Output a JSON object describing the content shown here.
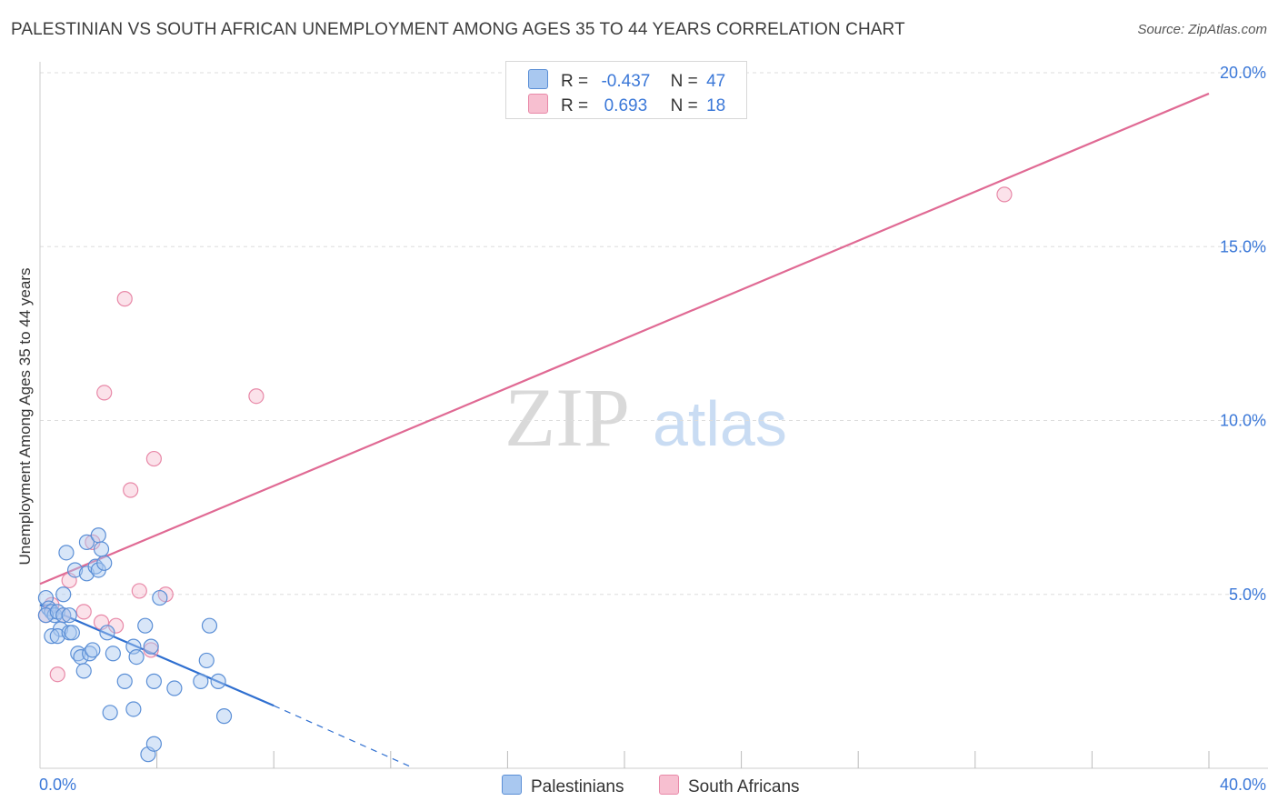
{
  "title": "PALESTINIAN VS SOUTH AFRICAN UNEMPLOYMENT AMONG AGES 35 TO 44 YEARS CORRELATION CHART",
  "source": "Source: ZipAtlas.com",
  "watermark": {
    "zip": "ZIP",
    "atlas": "atlas"
  },
  "legend": {
    "palestinians": {
      "r_label": "R =",
      "r_value": "-0.437",
      "n_label": "N =",
      "n_value": "47"
    },
    "south_africans": {
      "r_label": "R =",
      "r_value": "0.693",
      "n_label": "N =",
      "n_value": "18"
    }
  },
  "bottom_legend": {
    "palestinians": "Palestinians",
    "south_africans": "South Africans"
  },
  "colors": {
    "blue_fill": "#a9c8f0",
    "blue_stroke": "#5b8fd6",
    "blue_line": "#2f6fd0",
    "pink_fill": "#f7bfd0",
    "pink_stroke": "#e889a8",
    "pink_line": "#e06a94",
    "axis_text": "#3b78d8",
    "grid": "#dddddd"
  },
  "chart_data": {
    "type": "scatter",
    "title": "PALESTINIAN VS SOUTH AFRICAN UNEMPLOYMENT AMONG AGES 35 TO 44 YEARS CORRELATION CHART",
    "xlabel": "",
    "ylabel": "Unemployment Among Ages 35 to 44 years",
    "xlim": [
      0,
      40
    ],
    "ylim": [
      0,
      20
    ],
    "x_tick_labels": [
      "0.0%",
      "40.0%"
    ],
    "y_ticks": [
      5,
      10,
      15,
      20
    ],
    "y_tick_labels": [
      "5.0%",
      "10.0%",
      "15.0%",
      "20.0%"
    ],
    "x_minor_ticks": [
      4,
      8,
      12,
      16,
      20,
      24,
      28,
      32,
      36,
      40
    ],
    "series": [
      {
        "name": "Palestinians",
        "color": "blue",
        "points": [
          [
            0.2,
            4.9
          ],
          [
            0.3,
            4.6
          ],
          [
            0.4,
            4.5
          ],
          [
            0.5,
            4.4
          ],
          [
            0.2,
            4.4
          ],
          [
            0.6,
            4.5
          ],
          [
            0.8,
            4.4
          ],
          [
            0.7,
            4.0
          ],
          [
            0.4,
            3.8
          ],
          [
            0.6,
            3.8
          ],
          [
            0.8,
            5.0
          ],
          [
            0.9,
            6.2
          ],
          [
            1.0,
            4.4
          ],
          [
            1.0,
            3.9
          ],
          [
            1.1,
            3.9
          ],
          [
            1.2,
            5.7
          ],
          [
            1.3,
            3.3
          ],
          [
            1.4,
            3.2
          ],
          [
            1.5,
            2.8
          ],
          [
            1.6,
            6.5
          ],
          [
            1.6,
            5.6
          ],
          [
            1.7,
            3.3
          ],
          [
            1.8,
            3.4
          ],
          [
            1.9,
            5.8
          ],
          [
            2.0,
            5.7
          ],
          [
            2.0,
            6.7
          ],
          [
            2.1,
            6.3
          ],
          [
            2.2,
            5.9
          ],
          [
            2.3,
            3.9
          ],
          [
            2.4,
            1.6
          ],
          [
            2.5,
            3.3
          ],
          [
            2.9,
            2.5
          ],
          [
            3.2,
            3.5
          ],
          [
            3.2,
            1.7
          ],
          [
            3.3,
            3.2
          ],
          [
            3.6,
            4.1
          ],
          [
            3.8,
            3.5
          ],
          [
            3.7,
            0.4
          ],
          [
            3.9,
            2.5
          ],
          [
            3.9,
            0.7
          ],
          [
            4.1,
            4.9
          ],
          [
            4.6,
            2.3
          ],
          [
            5.5,
            2.5
          ],
          [
            5.7,
            3.1
          ],
          [
            5.8,
            4.1
          ],
          [
            6.1,
            2.5
          ],
          [
            6.3,
            1.5
          ]
        ]
      },
      {
        "name": "South Africans",
        "color": "pink",
        "points": [
          [
            0.2,
            4.4
          ],
          [
            0.4,
            4.7
          ],
          [
            0.6,
            2.7
          ],
          [
            0.8,
            4.4
          ],
          [
            1.0,
            5.4
          ],
          [
            1.5,
            4.5
          ],
          [
            1.8,
            6.5
          ],
          [
            2.1,
            4.2
          ],
          [
            2.2,
            10.8
          ],
          [
            2.6,
            4.1
          ],
          [
            2.9,
            13.5
          ],
          [
            3.1,
            8.0
          ],
          [
            3.4,
            5.1
          ],
          [
            3.8,
            3.4
          ],
          [
            3.9,
            8.9
          ],
          [
            4.3,
            5.0
          ],
          [
            7.4,
            10.7
          ],
          [
            33.0,
            16.5
          ]
        ]
      }
    ],
    "trendlines": [
      {
        "series": "Palestinians",
        "solid": [
          [
            0,
            4.7
          ],
          [
            8.0,
            1.8
          ]
        ],
        "dashed": [
          [
            8.0,
            1.8
          ],
          [
            12.8,
            0.0
          ]
        ]
      },
      {
        "series": "South Africans",
        "solid": [
          [
            0,
            5.3
          ],
          [
            40,
            19.4
          ]
        ]
      }
    ]
  }
}
